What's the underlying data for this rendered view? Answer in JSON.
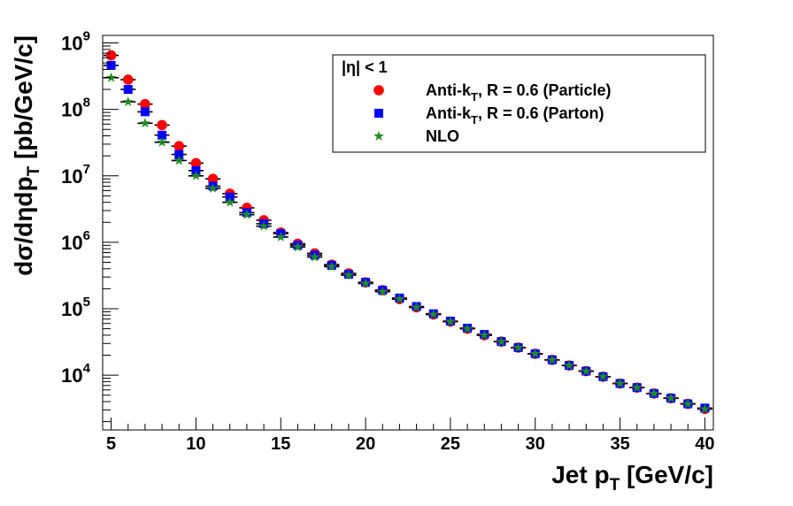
{
  "chart_data": {
    "type": "scatter",
    "title": "",
    "xlabel": {
      "main": "Jet p",
      "sub": "T",
      "tail": " [GeV/c]"
    },
    "ylabel": {
      "main": "dσ/dηdp",
      "sub": "T",
      "tail": " [pb/GeV/c]"
    },
    "xlim": [
      4.5,
      40.5
    ],
    "ylim": [
      1500,
      1300000000
    ],
    "yscale": "log",
    "x_ticks": [
      5,
      10,
      15,
      20,
      25,
      30,
      35,
      40
    ],
    "x_tick_labels": [
      "5",
      "10",
      "15",
      "20",
      "25",
      "30",
      "35",
      "40"
    ],
    "y_ticks": [
      10000,
      100000,
      1000000,
      10000000,
      100000000,
      1000000000
    ],
    "y_tick_labels": [
      {
        "base": "10",
        "exp": "4"
      },
      {
        "base": "10",
        "exp": "5"
      },
      {
        "base": "10",
        "exp": "6"
      },
      {
        "base": "10",
        "exp": "7"
      },
      {
        "base": "10",
        "exp": "8"
      },
      {
        "base": "10",
        "exp": "9"
      }
    ],
    "grid": false,
    "legend": {
      "placement": "top-right",
      "header": "|η| < 1"
    },
    "x": [
      5,
      6,
      7,
      8,
      9,
      10,
      11,
      12,
      13,
      14,
      15,
      16,
      17,
      18,
      19,
      20,
      21,
      22,
      23,
      24,
      25,
      26,
      27,
      28,
      29,
      30,
      31,
      32,
      33,
      34,
      35,
      36,
      37,
      38,
      39,
      40
    ],
    "series": [
      {
        "name": {
          "main": "Anti-k",
          "sub": "T",
          "tail": ", R = 0.6 (Particle)"
        },
        "marker": "circle",
        "color": "#ff0000",
        "values": [
          650000000,
          280000000,
          120000000,
          58000000,
          28000000,
          15500000,
          9000000,
          5400000,
          3300000,
          2150000,
          1400000,
          950000,
          680000,
          460000,
          340000,
          250000,
          190000,
          140000,
          105000,
          82000,
          64000,
          50000,
          40000,
          32000,
          26000,
          21000,
          17000,
          14000,
          11500,
          9500,
          7500,
          6500,
          5300,
          4500,
          3700,
          3100
        ]
      },
      {
        "name": {
          "main": "Anti-k",
          "sub": "T",
          "tail": ", R = 0.6 (Parton)"
        },
        "marker": "square",
        "color": "#0000ff",
        "values": [
          460000000,
          200000000,
          92000000,
          41000000,
          21000000,
          12000000,
          7000000,
          4800000,
          2800000,
          1900000,
          1350000,
          900000,
          640000,
          450000,
          330000,
          250000,
          190000,
          145000,
          108000,
          84000,
          65000,
          51000,
          41000,
          32000,
          26000,
          21000,
          17000,
          14000,
          11500,
          9500,
          7500,
          6500,
          5300,
          4500,
          3700,
          3200
        ]
      },
      {
        "name": {
          "main": "NLO",
          "sub": "",
          "tail": ""
        },
        "marker": "star",
        "color": "#1e8c1e",
        "values": [
          300000000,
          130000000,
          62000000,
          32000000,
          17000000,
          10000000,
          6500000,
          4000000,
          2600000,
          1750000,
          1200000,
          850000,
          600000,
          430000,
          320000,
          240000,
          180000,
          140000,
          105000,
          82000,
          64000,
          50000,
          40000,
          32000,
          26000,
          21000,
          17000,
          14000,
          11500,
          9500,
          7500,
          6500,
          5300,
          4500,
          3700,
          3100
        ]
      }
    ]
  }
}
